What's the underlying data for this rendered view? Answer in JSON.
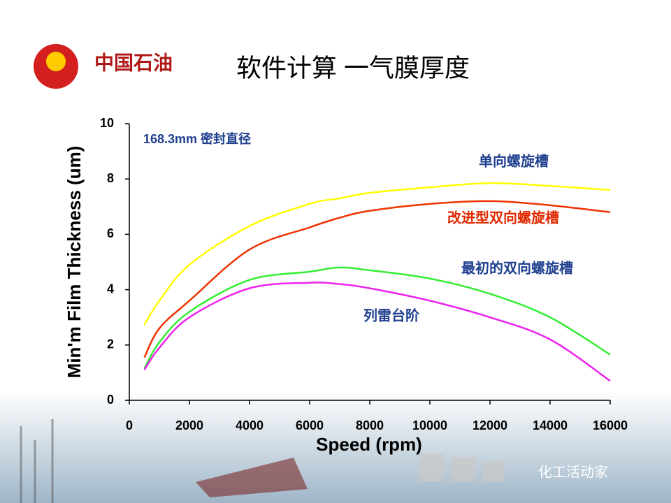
{
  "logo_text": "中国石油",
  "title": "软件计算 一气膜厚度",
  "footer": "化工活动家",
  "chart_data": {
    "type": "line",
    "annotation": "168.3mm 密封直径",
    "x_label": "Speed (rpm)",
    "y_label": "Min'm Film Thickness (um)",
    "x": [
      500,
      1000,
      2000,
      4000,
      6000,
      7000,
      8000,
      10000,
      12000,
      14000,
      16000
    ],
    "series": [
      {
        "name": "单向螺旋槽",
        "color": "#ffff00",
        "values": [
          2.73,
          3.6,
          4.9,
          6.3,
          7.1,
          7.3,
          7.5,
          7.7,
          7.85,
          7.75,
          7.6
        ]
      },
      {
        "name": "改进型双向螺旋槽",
        "color": "#ee3300",
        "values": [
          1.55,
          2.6,
          3.6,
          5.45,
          6.25,
          6.6,
          6.85,
          7.1,
          7.2,
          7.05,
          6.8
        ]
      },
      {
        "name": "最初的双向螺旋槽",
        "color": "#33ee33",
        "values": [
          1.15,
          2.1,
          3.2,
          4.35,
          4.65,
          4.8,
          4.7,
          4.4,
          3.85,
          3.0,
          1.65
        ]
      },
      {
        "name": "列雷台阶",
        "color": "#ee22ee",
        "values": [
          1.1,
          1.9,
          3.0,
          4.05,
          4.25,
          4.2,
          4.05,
          3.6,
          3.0,
          2.2,
          0.7
        ]
      }
    ],
    "xlim": [
      0,
      16000
    ],
    "xticks": [
      0,
      2000,
      4000,
      6000,
      8000,
      10000,
      12000,
      14000,
      16000
    ],
    "ylim": [
      0,
      10
    ],
    "yticks": [
      0,
      2,
      4,
      6,
      8,
      10
    ]
  }
}
